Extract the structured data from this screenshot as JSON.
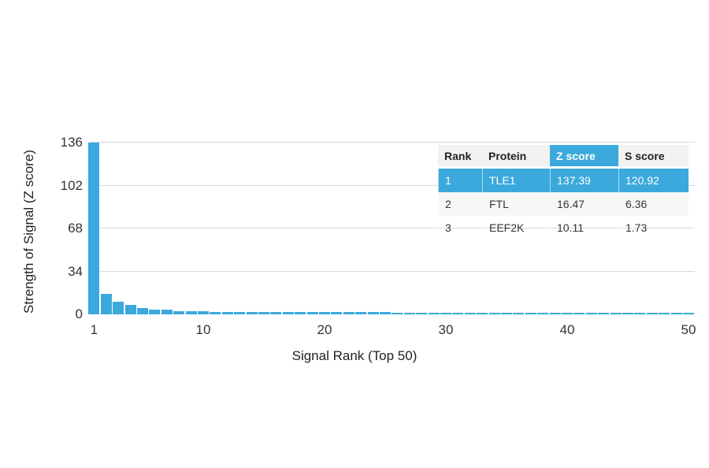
{
  "figure": {
    "background": "#ffffff",
    "accent_blue": "#3BA9DC"
  },
  "chart_data": {
    "type": "bar",
    "title": "",
    "xlabel": "Signal Rank (Top 50)",
    "ylabel": "Strength of Signal (Z score)",
    "x": [
      1,
      2,
      3,
      4,
      5,
      6,
      7,
      8,
      9,
      10,
      11,
      12,
      13,
      14,
      15,
      16,
      17,
      18,
      19,
      20,
      21,
      22,
      23,
      24,
      25,
      26,
      27,
      28,
      29,
      30,
      31,
      32,
      33,
      34,
      35,
      36,
      37,
      38,
      39,
      40,
      41,
      42,
      43,
      44,
      45,
      46,
      47,
      48,
      49,
      50
    ],
    "values": [
      137.39,
      16.47,
      10.11,
      7.6,
      5.0,
      3.9,
      3.7,
      2.6,
      2.5,
      2.3,
      2.1,
      2.0,
      2.0,
      1.9,
      1.9,
      1.8,
      1.8,
      1.8,
      1.7,
      1.7,
      1.7,
      1.6,
      1.6,
      1.6,
      1.6,
      1.5,
      1.5,
      1.5,
      1.5,
      1.5,
      1.4,
      1.4,
      1.4,
      1.4,
      1.4,
      1.3,
      1.3,
      1.3,
      1.3,
      1.3,
      1.3,
      1.2,
      1.2,
      1.2,
      1.2,
      1.2,
      1.2,
      1.1,
      1.1,
      1.1
    ],
    "ylim": [
      0,
      136
    ],
    "y_ticks": [
      0,
      34,
      68,
      102,
      136
    ],
    "x_ticks": [
      1,
      10,
      20,
      30,
      40,
      50
    ],
    "bar_color": "#3BA9DC",
    "grid_color": "#d9d9d9",
    "grid": true,
    "legend": "none"
  },
  "table": {
    "columns": [
      "Rank",
      "Protein",
      "Z score",
      "S score"
    ],
    "highlight_column": "Z score",
    "highlight_color": "#3BA9DC",
    "header_bg": "#f2f2f2",
    "alt_row_bg": "#f7f7f7",
    "rows": [
      {
        "rank": "1",
        "protein": "TLE1",
        "z_score": "137.39",
        "s_score": "120.92",
        "highlighted": true
      },
      {
        "rank": "2",
        "protein": "FTL",
        "z_score": "16.47",
        "s_score": "6.36",
        "highlighted": false
      },
      {
        "rank": "3",
        "protein": "EEF2K",
        "z_score": "10.11",
        "s_score": "1.73",
        "highlighted": false
      }
    ]
  }
}
